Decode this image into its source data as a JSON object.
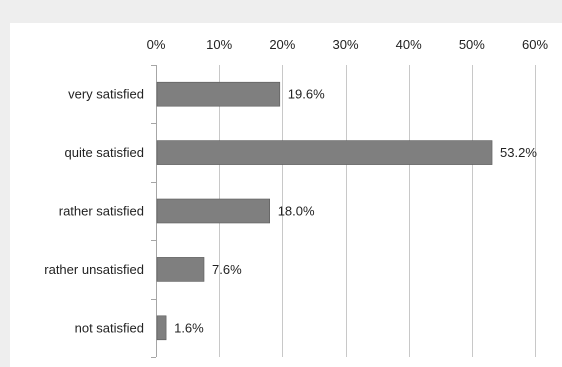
{
  "chart_data": {
    "type": "bar",
    "orientation": "horizontal",
    "title": "",
    "xlabel": "",
    "ylabel": "",
    "categories": [
      "very satisfied",
      "quite satisfied",
      "rather satisfied",
      "rather unsatisfied",
      "not satisfied"
    ],
    "values": [
      19.6,
      53.2,
      18.0,
      7.6,
      1.6
    ],
    "value_labels": [
      "19.6%",
      "53.2%",
      "18.0%",
      "7.6%",
      "1.6%"
    ],
    "xlim": [
      0,
      60
    ],
    "x_ticks": [
      0,
      10,
      20,
      30,
      40,
      50,
      60
    ],
    "x_tick_labels": [
      "0%",
      "10%",
      "20%",
      "30%",
      "40%",
      "50%",
      "60%"
    ],
    "x_axis_position": "top",
    "grid": true,
    "legend": "none",
    "bar_color": "#7f7f7f",
    "bar_edge_color": "#5a5a5a",
    "grid_color": "#c8c8c8",
    "axis_color": "#a6a6a6"
  }
}
